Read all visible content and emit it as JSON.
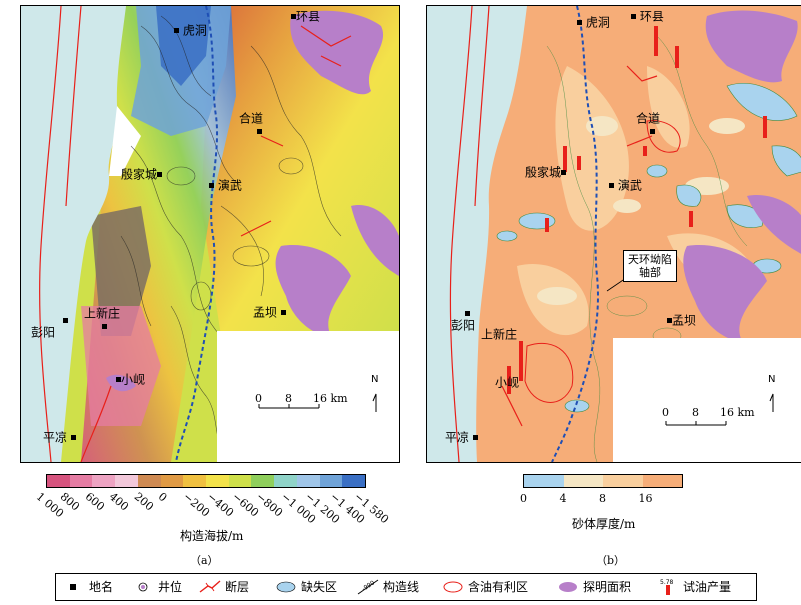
{
  "panel_a": {
    "places": {
      "hudong": "虎洞",
      "huanxian": "环县",
      "heda": "合道",
      "yinjiacheng": "殷家城",
      "yanwu": "演武",
      "shangxinzhuang": "上新庄",
      "pengyang": "彭阳",
      "mengba": "孟坝",
      "xiaoxian": "小岘",
      "pingliang": "平凉"
    },
    "scale": {
      "labels": [
        "0",
        "8",
        "16 km"
      ]
    },
    "north": "N",
    "caption": "（a）"
  },
  "panel_b": {
    "places": {
      "hudong": "虎洞",
      "huanxian": "环县",
      "heda": "合道",
      "yinjiacheng": "殷家城",
      "yanwu": "演武",
      "shangxinzhuang": "上新庄",
      "pengyang": "彭阳",
      "mengba": "孟坝",
      "xiaoxian": "小岘",
      "pingliang": "平凉"
    },
    "callout": {
      "line1": "天环坳陷",
      "line2": "轴部"
    },
    "scale": {
      "labels": [
        "0",
        "8",
        "16 km"
      ]
    },
    "north": "N",
    "caption": "（b）"
  },
  "legend_a": {
    "title": "构造海拔/m",
    "ticks": [
      "1 000",
      "800",
      "600",
      "400",
      "200",
      "0",
      "−200",
      "−400",
      "−600",
      "−800",
      "−1 000",
      "−1 200",
      "−1 400",
      "−1 580"
    ],
    "colors": [
      "#d6537e",
      "#e57ca3",
      "#eda3c2",
      "#f2c8da",
      "#cf8a52",
      "#e09a44",
      "#f0c040",
      "#f3e24a",
      "#cfe04a",
      "#8fcf5c",
      "#8fd3c8",
      "#9fc5e8",
      "#6fa3d8",
      "#3a6fc4"
    ]
  },
  "legend_b": {
    "title": "砂体厚度/m",
    "ticks": [
      "0",
      "4",
      "8",
      "16"
    ],
    "colors": [
      "#a9d3ee",
      "#f5e6c4",
      "#f9cf9e",
      "#f6ad78"
    ]
  },
  "key": {
    "items": [
      {
        "symbol": "square-icon",
        "label": "地名"
      },
      {
        "symbol": "well-icon",
        "label": "井位"
      },
      {
        "symbol": "fault-icon",
        "label": "断层"
      },
      {
        "symbol": "missing-zone-icon",
        "label": "缺失区"
      },
      {
        "symbol": "contour-icon",
        "label": "构造线",
        "sym_text": "-990"
      },
      {
        "symbol": "oil-zone-icon",
        "label": "含油有利区"
      },
      {
        "symbol": "proven-area-icon",
        "label": "探明面积"
      },
      {
        "symbol": "test-output-icon",
        "label": "试油产量",
        "sym_text": "5.78"
      }
    ]
  },
  "colors": {
    "water": "#cfe8ea",
    "fault": "#e8201a",
    "axis": "#1f4fb5",
    "proven": "#b77fc9",
    "sand_high": "#f6ad78"
  }
}
